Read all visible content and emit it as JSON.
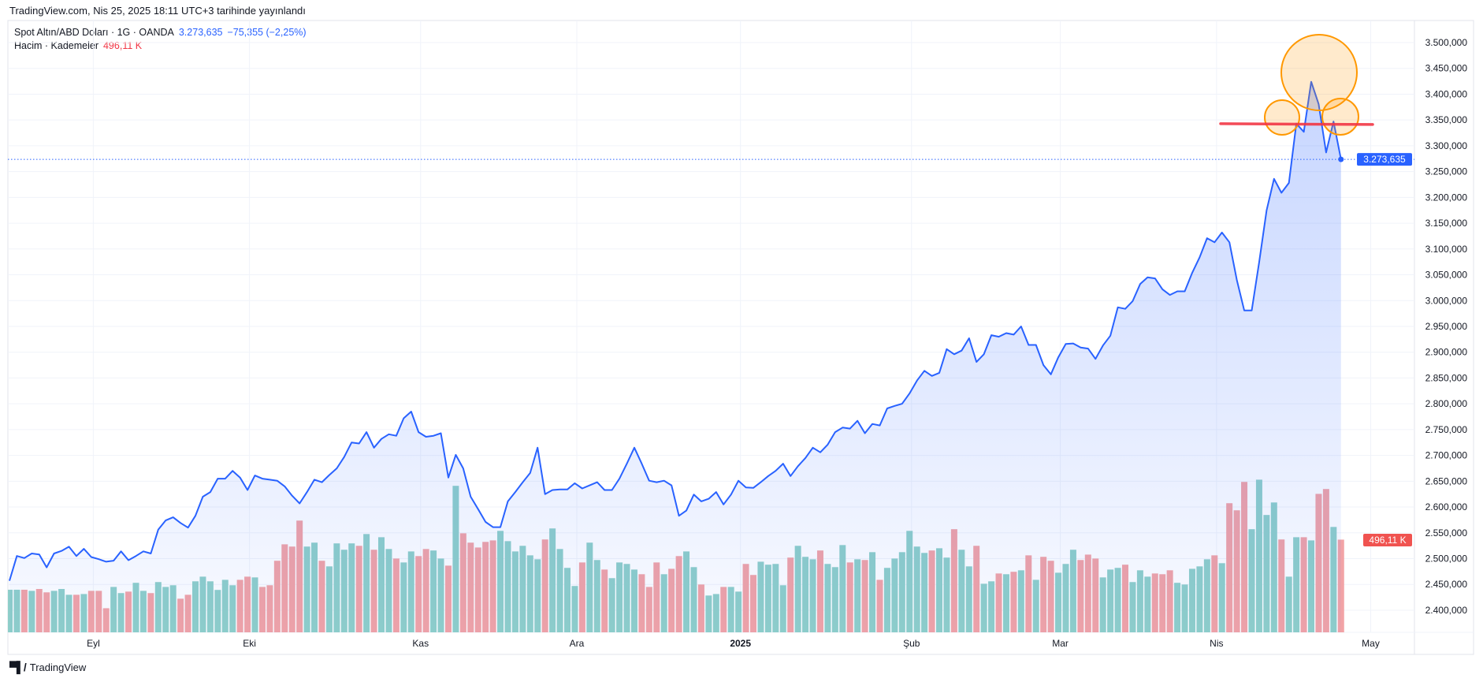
{
  "header": {
    "published": "TradingView.com, Nis 25, 2025 18:11 UTC+3 tarihinde yayınlandı"
  },
  "legend": {
    "symbol": "Spot Altın/ABD Doları · 1G · OANDA",
    "last_price": "3.273,635",
    "change": "−75,355 (−2,25%)",
    "volume_label": "Hacim · Kademeler",
    "volume_value": "496,11 K"
  },
  "price_axis": {
    "labels": [
      "3.500,000",
      "3.450,000",
      "3.400,000",
      "3.350,000",
      "3.300,000",
      "3.250,000",
      "3.200,000",
      "3.150,000",
      "3.100,000",
      "3.050,000",
      "3.000,000",
      "2.950,000",
      "2.900,000",
      "2.850,000",
      "2.800,000",
      "2.750,000",
      "2.700,000",
      "2.650,000",
      "2.600,000",
      "2.550,000",
      "2.500,000",
      "2.450,000",
      "2.400,000"
    ],
    "current_price_badge": "3.273,635",
    "current_volume_badge": "496,11 K"
  },
  "footer": {
    "brand": "TradingView",
    "logo_text": "TV"
  },
  "colors": {
    "line": "#2962ff",
    "volume_up": "#8fcfc9",
    "volume_down": "#f2a3a6",
    "price_badge": "#2962ff",
    "volume_badge": "#f05350",
    "drawing_line": "#f23645",
    "drawing_circle": "#ff9800"
  },
  "chart_data": {
    "type": "area",
    "title": "Spot Altın/ABD Doları · 1G · OANDA",
    "ylim": [
      2380,
      3530
    ],
    "grid": true,
    "x_ticks": [
      {
        "date": "2024-09-01",
        "label": "Eyl"
      },
      {
        "date": "2024-10-01",
        "label": "Eki"
      },
      {
        "date": "2024-11-01",
        "label": "Kas"
      },
      {
        "date": "2024-12-01",
        "label": "Ara"
      },
      {
        "date": "2025-01-01",
        "label": "2025",
        "bold": true
      },
      {
        "date": "2025-02-01",
        "label": "Şub"
      },
      {
        "date": "2025-03-01",
        "label": "Mar"
      },
      {
        "date": "2025-04-01",
        "label": "Nis"
      },
      {
        "date": "2025-05-01",
        "label": "May"
      }
    ],
    "dates": [
      "2024-08-19",
      "2024-08-20",
      "2024-08-21",
      "2024-08-22",
      "2024-08-23",
      "2024-08-26",
      "2024-08-27",
      "2024-08-28",
      "2024-08-29",
      "2024-08-30",
      "2024-09-02",
      "2024-09-03",
      "2024-09-04",
      "2024-09-05",
      "2024-09-06",
      "2024-09-09",
      "2024-09-10",
      "2024-09-11",
      "2024-09-12",
      "2024-09-13",
      "2024-09-16",
      "2024-09-17",
      "2024-09-18",
      "2024-09-19",
      "2024-09-20",
      "2024-09-23",
      "2024-09-24",
      "2024-09-25",
      "2024-09-26",
      "2024-09-27",
      "2024-09-30",
      "2024-10-01",
      "2024-10-02",
      "2024-10-03",
      "2024-10-04",
      "2024-10-07",
      "2024-10-08",
      "2024-10-09",
      "2024-10-10",
      "2024-10-11",
      "2024-10-14",
      "2024-10-15",
      "2024-10-16",
      "2024-10-17",
      "2024-10-18",
      "2024-10-21",
      "2024-10-22",
      "2024-10-23",
      "2024-10-24",
      "2024-10-25",
      "2024-10-28",
      "2024-10-29",
      "2024-10-30",
      "2024-10-31",
      "2024-11-01",
      "2024-11-04",
      "2024-11-05",
      "2024-11-06",
      "2024-11-07",
      "2024-11-08",
      "2024-11-11",
      "2024-11-12",
      "2024-11-13",
      "2024-11-14",
      "2024-11-15",
      "2024-11-18",
      "2024-11-19",
      "2024-11-20",
      "2024-11-21",
      "2024-11-22",
      "2024-11-25",
      "2024-11-26",
      "2024-11-27",
      "2024-11-28",
      "2024-11-29",
      "2024-12-02",
      "2024-12-03",
      "2024-12-04",
      "2024-12-05",
      "2024-12-06",
      "2024-12-09",
      "2024-12-10",
      "2024-12-11",
      "2024-12-12",
      "2024-12-13",
      "2024-12-16",
      "2024-12-17",
      "2024-12-18",
      "2024-12-19",
      "2024-12-20",
      "2024-12-23",
      "2024-12-24",
      "2024-12-25",
      "2024-12-26",
      "2024-12-27",
      "2024-12-30",
      "2024-12-31",
      "2025-01-01",
      "2025-01-02",
      "2025-01-03",
      "2025-01-06",
      "2025-01-07",
      "2025-01-08",
      "2025-01-09",
      "2025-01-10",
      "2025-01-13",
      "2025-01-14",
      "2025-01-15",
      "2025-01-16",
      "2025-01-17",
      "2025-01-20",
      "2025-01-21",
      "2025-01-22",
      "2025-01-23",
      "2025-01-24",
      "2025-01-27",
      "2025-01-28",
      "2025-01-29",
      "2025-01-30",
      "2025-01-31",
      "2025-02-03",
      "2025-02-04",
      "2025-02-05",
      "2025-02-06",
      "2025-02-07",
      "2025-02-10",
      "2025-02-11",
      "2025-02-12",
      "2025-02-13",
      "2025-02-14",
      "2025-02-17",
      "2025-02-18",
      "2025-02-19",
      "2025-02-20",
      "2025-02-21",
      "2025-02-24",
      "2025-02-25",
      "2025-02-26",
      "2025-02-27",
      "2025-02-28",
      "2025-03-03",
      "2025-03-04",
      "2025-03-05",
      "2025-03-06",
      "2025-03-07",
      "2025-03-10",
      "2025-03-11",
      "2025-03-12",
      "2025-03-13",
      "2025-03-14",
      "2025-03-17",
      "2025-03-18",
      "2025-03-19",
      "2025-03-20",
      "2025-03-21",
      "2025-03-24",
      "2025-03-25",
      "2025-03-26",
      "2025-03-27",
      "2025-03-28",
      "2025-03-31",
      "2025-04-01",
      "2025-04-02",
      "2025-04-03",
      "2025-04-04",
      "2025-04-07",
      "2025-04-08",
      "2025-04-09",
      "2025-04-10",
      "2025-04-11",
      "2025-04-14",
      "2025-04-15",
      "2025-04-16",
      "2025-04-17",
      "2025-04-18",
      "2025-04-21",
      "2025-04-22",
      "2025-04-23",
      "2025-04-24",
      "2025-04-25"
    ],
    "series": [
      {
        "kind": "price-close",
        "values": [
          2457,
          2505,
          2501,
          2510,
          2508,
          2483,
          2510,
          2515,
          2523,
          2505,
          2519,
          2503,
          2499,
          2494,
          2496,
          2514,
          2497,
          2505,
          2514,
          2510,
          2556,
          2574,
          2580,
          2569,
          2560,
          2583,
          2620,
          2629,
          2655,
          2655,
          2670,
          2657,
          2633,
          2661,
          2655,
          2653,
          2651,
          2640,
          2622,
          2607,
          2629,
          2653,
          2648,
          2662,
          2675,
          2697,
          2725,
          2723,
          2745,
          2715,
          2732,
          2741,
          2738,
          2772,
          2785,
          2745,
          2736,
          2738,
          2743,
          2657,
          2701,
          2675,
          2620,
          2596,
          2571,
          2561,
          2561,
          2611,
          2629,
          2648,
          2666,
          2715,
          2625,
          2633,
          2634,
          2634,
          2646,
          2636,
          2642,
          2648,
          2633,
          2633,
          2655,
          2684,
          2715,
          2684,
          2651,
          2648,
          2651,
          2642,
          2583,
          2593,
          2624,
          2611,
          2616,
          2629,
          2605,
          2624,
          2651,
          2638,
          2637,
          2648,
          2660,
          2670,
          2684,
          2660,
          2679,
          2695,
          2715,
          2706,
          2721,
          2745,
          2754,
          2752,
          2767,
          2743,
          2761,
          2758,
          2791,
          2796,
          2800,
          2820,
          2845,
          2864,
          2854,
          2860,
          2906,
          2896,
          2903,
          2927,
          2881,
          2896,
          2933,
          2930,
          2937,
          2934,
          2950,
          2914,
          2914,
          2875,
          2857,
          2890,
          2916,
          2917,
          2909,
          2907,
          2887,
          2913,
          2932,
          2987,
          2984,
          2999,
          3032,
          3045,
          3043,
          3022,
          3011,
          3018,
          3018,
          3054,
          3084,
          3121,
          3113,
          3132,
          3113,
          3040,
          2981,
          2981,
          3074,
          3175,
          3236,
          3209,
          3228,
          3343,
          3327,
          3424,
          3381,
          3287,
          3347,
          3273.635
        ]
      },
      {
        "kind": "volume-K",
        "values": [
          228,
          228,
          228,
          222,
          232,
          214,
          222,
          232,
          201,
          201,
          205,
          222,
          222,
          129,
          243,
          210,
          218,
          265,
          222,
          210,
          269,
          243,
          252,
          180,
          201,
          273,
          298,
          273,
          227,
          281,
          252,
          281,
          298,
          294,
          243,
          252,
          383,
          471,
          459,
          598,
          459,
          480,
          383,
          353,
          476,
          442,
          476,
          463,
          526,
          442,
          509,
          446,
          395,
          374,
          433,
          408,
          446,
          438,
          395,
          357,
          784,
          530,
          480,
          454,
          484,
          492,
          543,
          488,
          433,
          463,
          412,
          391,
          497,
          556,
          446,
          345,
          248,
          374,
          480,
          387,
          336,
          290,
          374,
          366,
          336,
          311,
          243,
          374,
          311,
          340,
          408,
          433,
          349,
          256,
          197,
          205,
          243,
          243,
          218,
          366,
          307,
          378,
          362,
          366,
          252,
          400,
          463,
          404,
          391,
          438,
          366,
          349,
          467,
          374,
          391,
          387,
          429,
          281,
          345,
          395,
          429,
          543,
          459,
          425,
          438,
          450,
          400,
          552,
          442,
          353,
          463,
          260,
          273,
          315,
          311,
          324,
          332,
          412,
          281,
          404,
          383,
          319,
          366,
          442,
          387,
          416,
          395,
          294,
          336,
          345,
          362,
          269,
          332,
          298,
          315,
          311,
          332,
          265,
          256,
          340,
          353,
          391,
          412,
          370,
          691,
          653,
          805,
          552,
          817,
          628,
          695,
          497,
          298,
          509,
          509,
          492,
          741,
          767,
          564,
          496.11
        ]
      }
    ],
    "annotations": {
      "horizontal_line_price": 3342,
      "highlight_circles": 3
    }
  }
}
